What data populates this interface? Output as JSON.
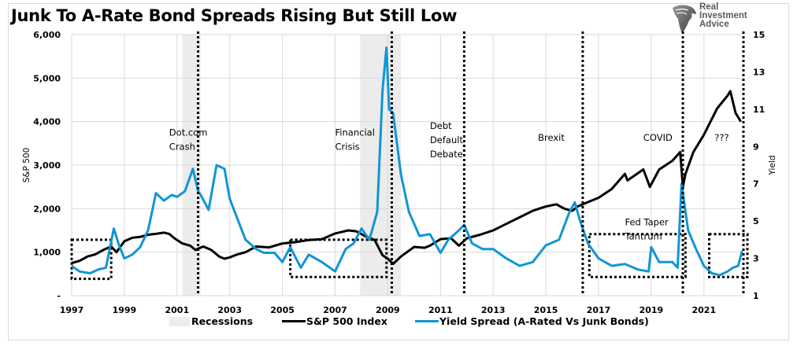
{
  "title": "Junk To A-Rate Bond Spreads Rising But Still Low",
  "logo": {
    "icon": "eagle-shield-icon",
    "lines": [
      "Real",
      "Investment",
      "Advice"
    ]
  },
  "colors": {
    "sp500": "#000000",
    "spread": "#0f96d6",
    "recession": "#ececec",
    "grid": "#d9d9d9",
    "annotation": "#000000"
  },
  "legend": [
    {
      "label": "Recessions",
      "type": "area"
    },
    {
      "label": "S&P 500 Index",
      "type": "line"
    },
    {
      "label": "Yield Spread (A-Rated Vs Junk Bonds)",
      "type": "line"
    }
  ],
  "chart_data": {
    "type": "line",
    "title": "Junk To A-Rate Bond Spreads Rising But Still Low",
    "xlabel": "",
    "ylabel": "S&P 500",
    "y2label": "Yield",
    "xlim": [
      1997,
      2022.5
    ],
    "ylim": [
      0,
      6000
    ],
    "y2lim": [
      1,
      15
    ],
    "grid": true,
    "legend_position": "bottom",
    "x_ticks": [
      "1997",
      "1999",
      "2001",
      "2003",
      "2005",
      "2007",
      "2009",
      "2011",
      "2013",
      "2015",
      "2017",
      "2019",
      "2021"
    ],
    "y_ticks": [
      "-",
      "1,000",
      "2,000",
      "3,000",
      "4,000",
      "5,000",
      "6,000"
    ],
    "y2_ticks": [
      "1",
      "3",
      "5",
      "7",
      "9",
      "11",
      "13",
      "15"
    ],
    "recessions": [
      [
        2001.2,
        2001.9
      ],
      [
        2007.95,
        2009.5
      ]
    ],
    "series": [
      {
        "name": "S&P 500 Index",
        "axis": "left",
        "x": [
          1997.0,
          1997.3,
          1997.6,
          1997.9,
          1998.2,
          1998.5,
          1998.7,
          1999.0,
          1999.3,
          1999.6,
          1999.9,
          2000.2,
          2000.5,
          2000.7,
          2000.9,
          2001.2,
          2001.5,
          2001.7,
          2001.8,
          2002.0,
          2002.3,
          2002.6,
          2002.8,
          2003.0,
          2003.3,
          2003.6,
          2004.0,
          2004.5,
          2005.0,
          2005.5,
          2006.0,
          2006.5,
          2007.0,
          2007.5,
          2007.8,
          2008.2,
          2008.5,
          2008.8,
          2009.0,
          2009.2,
          2009.5,
          2010.0,
          2010.4,
          2010.6,
          2011.0,
          2011.4,
          2011.7,
          2012.0,
          2012.5,
          2013.0,
          2013.5,
          2014.0,
          2014.5,
          2015.0,
          2015.4,
          2015.7,
          2016.0,
          2016.2,
          2016.6,
          2017.0,
          2017.5,
          2018.0,
          2018.1,
          2018.7,
          2018.95,
          2019.3,
          2019.8,
          2020.1,
          2020.2,
          2020.3,
          2020.6,
          2021.0,
          2021.5,
          2021.9,
          2022.0,
          2022.2,
          2022.4
        ],
        "values": [
          750,
          800,
          900,
          950,
          1050,
          1130,
          1000,
          1250,
          1330,
          1350,
          1400,
          1420,
          1450,
          1420,
          1320,
          1200,
          1150,
          1050,
          1080,
          1130,
          1050,
          900,
          850,
          880,
          950,
          1000,
          1130,
          1110,
          1200,
          1230,
          1280,
          1300,
          1430,
          1500,
          1480,
          1350,
          1280,
          930,
          850,
          730,
          900,
          1120,
          1100,
          1150,
          1300,
          1320,
          1150,
          1320,
          1400,
          1500,
          1650,
          1800,
          1950,
          2050,
          2100,
          2000,
          1950,
          2050,
          2150,
          2250,
          2450,
          2800,
          2650,
          2900,
          2500,
          2900,
          3100,
          3300,
          2500,
          2800,
          3300,
          3700,
          4300,
          4600,
          4700,
          4200,
          4000
        ]
      },
      {
        "name": "Yield Spread (A-Rated Vs Junk Bonds)",
        "axis": "right",
        "x": [
          1997.0,
          1997.3,
          1997.7,
          1998.0,
          1998.3,
          1998.6,
          1998.8,
          1999.0,
          1999.3,
          1999.6,
          1999.9,
          2000.2,
          2000.5,
          2000.8,
          2001.0,
          2001.3,
          2001.6,
          2001.8,
          2001.9,
          2002.2,
          2002.5,
          2002.8,
          2003.0,
          2003.3,
          2003.6,
          2004.0,
          2004.3,
          2004.7,
          2005.0,
          2005.3,
          2005.7,
          2006.0,
          2006.5,
          2007.0,
          2007.4,
          2007.7,
          2008.0,
          2008.3,
          2008.6,
          2008.8,
          2008.95,
          2009.05,
          2009.2,
          2009.5,
          2009.8,
          2010.2,
          2010.6,
          2011.0,
          2011.3,
          2011.7,
          2011.9,
          2012.2,
          2012.6,
          2013.0,
          2013.5,
          2014.0,
          2014.5,
          2015.0,
          2015.5,
          2015.9,
          2016.1,
          2016.3,
          2016.6,
          2017.0,
          2017.5,
          2018.0,
          2018.5,
          2018.9,
          2019.0,
          2019.3,
          2019.8,
          2020.0,
          2020.15,
          2020.25,
          2020.4,
          2020.7,
          2021.0,
          2021.3,
          2021.6,
          2021.9,
          2022.1,
          2022.3,
          2022.45
        ],
        "values": [
          2.6,
          2.3,
          2.2,
          2.4,
          2.5,
          4.6,
          3.7,
          3.0,
          3.2,
          3.6,
          4.5,
          6.5,
          6.1,
          6.4,
          6.3,
          6.6,
          7.8,
          6.6,
          6.4,
          5.6,
          8.0,
          7.8,
          6.2,
          5.1,
          4.0,
          3.5,
          3.3,
          3.3,
          2.8,
          3.6,
          2.5,
          3.2,
          2.8,
          2.3,
          3.5,
          3.8,
          4.6,
          4.0,
          5.5,
          12.0,
          14.3,
          11.0,
          10.8,
          7.5,
          5.5,
          4.2,
          4.3,
          3.3,
          4.0,
          4.5,
          4.8,
          3.8,
          3.5,
          3.5,
          3.0,
          2.6,
          2.8,
          3.7,
          4.0,
          5.5,
          6.0,
          5.0,
          3.8,
          3.0,
          2.6,
          2.7,
          2.4,
          2.3,
          3.6,
          2.8,
          2.8,
          2.5,
          7.0,
          6.0,
          4.5,
          3.5,
          2.6,
          2.2,
          2.1,
          2.3,
          2.5,
          2.6,
          3.4
        ]
      }
    ],
    "annotations": [
      {
        "text": "Dot.com\nCrash",
        "x": 2001.0,
        "y2": 9.3
      },
      {
        "text": "Financial\nCrisis",
        "x": 2007.3,
        "y2": 9.3
      },
      {
        "text": "Debt\nDefault\nDebate",
        "x": 2010.9,
        "y2": 9.4
      },
      {
        "text": "Brexit",
        "x": 2015.0,
        "y2": 9.3
      },
      {
        "text": "COVID",
        "x": 2019.0,
        "y2": 9.3
      },
      {
        "text": "???",
        "x": 2021.7,
        "y2": 9.3
      },
      {
        "text": "Fed Taper\nTantrum",
        "x": 2018.3,
        "y2": 4.5
      }
    ],
    "event_lines": [
      2001.8,
      2009.15,
      2011.9,
      2016.4,
      2020.2,
      2022.5
    ],
    "highlight_boxes": [
      {
        "x": [
          1997.0,
          1998.5
        ],
        "y2": [
          1.9,
          4.0
        ]
      },
      {
        "x": [
          2005.3,
          2008.95
        ],
        "y2": [
          2.0,
          4.0
        ]
      },
      {
        "x": [
          2016.65,
          2020.3
        ],
        "y2": [
          2.0,
          4.3
        ]
      },
      {
        "x": [
          2021.2,
          2022.65
        ],
        "y2": [
          2.0,
          4.3
        ]
      }
    ]
  }
}
